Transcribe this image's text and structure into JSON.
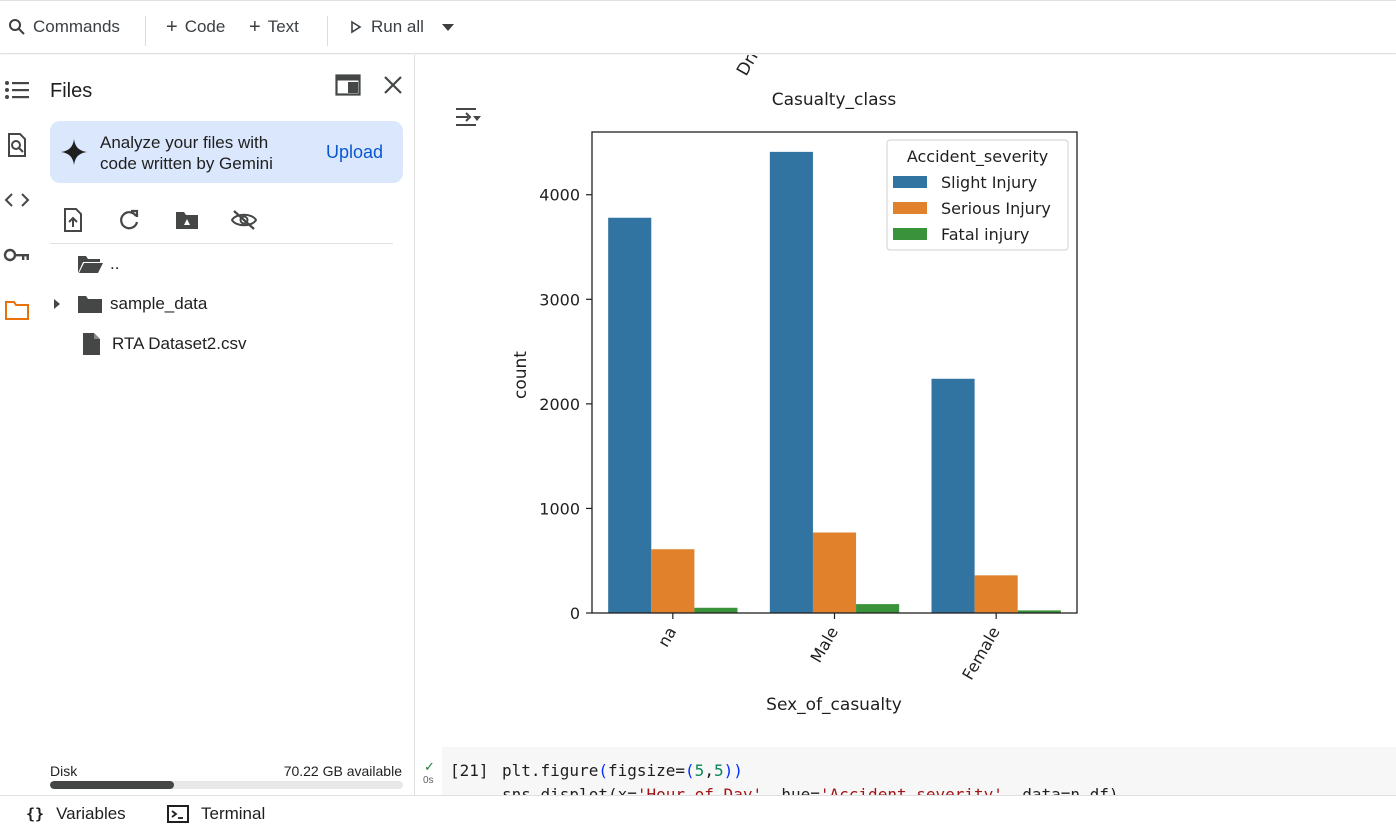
{
  "toolbar": {
    "commands_label": "Commands",
    "code_label": "Code",
    "text_label": "Text",
    "run_all_label": "Run all"
  },
  "files_panel": {
    "title": "Files",
    "gemini_text": "Analyze your files with code written by Gemini",
    "upload_label": "Upload",
    "tree": [
      {
        "name": "..",
        "type": "parent-folder"
      },
      {
        "name": "sample_data",
        "type": "folder"
      },
      {
        "name": "RTA Dataset2.csv",
        "type": "file"
      }
    ],
    "disk_label": "Disk",
    "disk_available": "70.22 GB available",
    "disk_used_fraction": 0.35
  },
  "output": {
    "top_clipped_label": "Dri",
    "figure_title": "Casualty_class"
  },
  "chart_data": {
    "type": "bar",
    "title": "Casualty_class",
    "xlabel": "Sex_of_casualty",
    "ylabel": "count",
    "categories": [
      "na",
      "Male",
      "Female"
    ],
    "ylim": [
      0,
      4600
    ],
    "yticks": [
      0,
      1000,
      2000,
      3000,
      4000
    ],
    "legend_title": "Accident_severity",
    "legend_position": "top-right",
    "grid": false,
    "series": [
      {
        "name": "Slight Injury",
        "color": "#3274a1",
        "values": [
          3780,
          4410,
          2240
        ]
      },
      {
        "name": "Serious Injury",
        "color": "#e1812c",
        "values": [
          610,
          770,
          360
        ]
      },
      {
        "name": "Fatal injury",
        "color": "#3a923a",
        "values": [
          50,
          85,
          25
        ]
      }
    ]
  },
  "code_cell": {
    "exec_count": "[21]",
    "run_time": "0s",
    "line1": "plt.figure(figsize=(5,5))",
    "line2_prefix": "sns.displot(x=",
    "line2_x": "'Hour_of_Day'",
    "line2_mid": ", hue=",
    "line2_hue": "'Accident_severity'",
    "line2_suffix": ", data=n_df)"
  },
  "bottombar": {
    "variables_label": "Variables",
    "terminal_label": "Terminal"
  }
}
